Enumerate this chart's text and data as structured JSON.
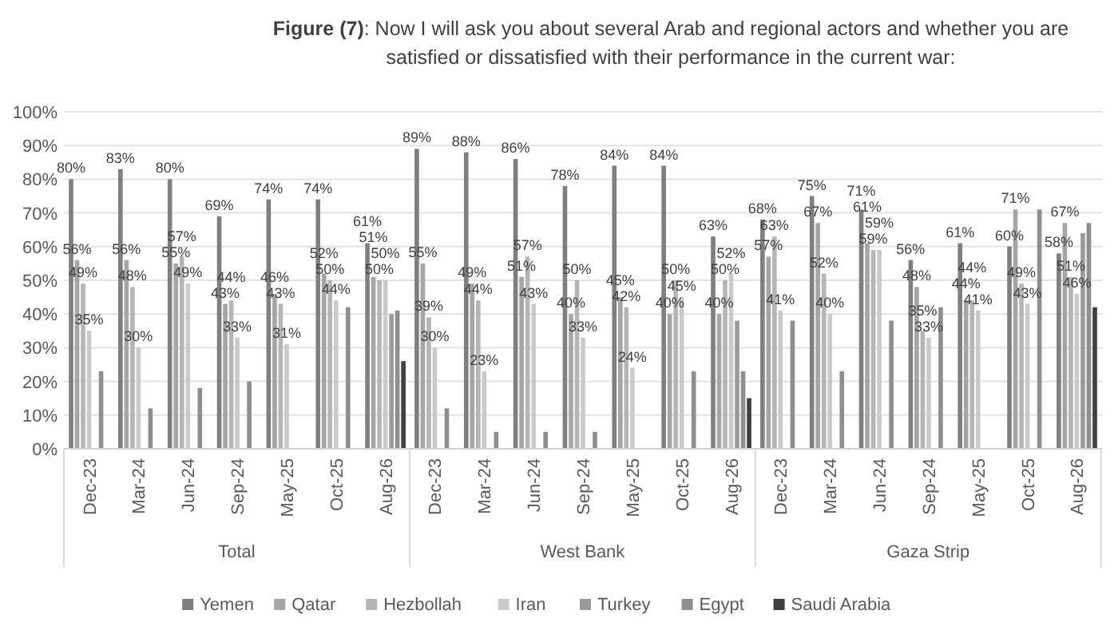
{
  "chart_data": {
    "type": "bar",
    "title": "Figure (7): Now I will ask you about several Arab and regional actors and whether you are satisfied or dissatisfied with their performance in the current war:",
    "categories": [
      "Dec-23",
      "Mar-24",
      "Jun-24",
      "Sep-24",
      "May-25",
      "Oct-25",
      "Aug-26",
      "Dec-23",
      "Mar-24",
      "Jun-24",
      "Sep-24",
      "May-25",
      "Oct-25",
      "Aug-26",
      "Dec-23",
      "Mar-24",
      "Jun-24",
      "Sep-24",
      "May-25",
      "Oct-25",
      "Aug-26"
    ],
    "annotations": [
      "Total",
      "West Bank",
      "Gaza Strip"
    ],
    "series": [
      {
        "name": "Yemen",
        "color": "#7f7f7f",
        "values": [
          80,
          83,
          80,
          69,
          74,
          74,
          61,
          89,
          88,
          86,
          78,
          84,
          84,
          63,
          68,
          75,
          71,
          56,
          61,
          60,
          58
        ],
        "value_labels": [
          "80%",
          "83%",
          "80%",
          "69%",
          "74%",
          "74%",
          "61%",
          "89%",
          "88%",
          "86%",
          "78%",
          "84%",
          "84%",
          "63%",
          "68%",
          "75%",
          "71%",
          "56%",
          "61%",
          "60%",
          "58%"
        ]
      },
      {
        "name": "Qatar",
        "color": "#a5a5a5",
        "values": [
          56,
          56,
          55,
          43,
          46,
          52,
          51,
          55,
          49,
          51,
          40,
          45,
          40,
          40,
          57,
          67,
          61,
          48,
          44,
          71,
          67
        ],
        "value_labels": [
          "56%",
          "56%",
          "55%",
          "43%",
          "46%",
          "52%",
          "51%",
          "55%",
          "49%",
          "51%",
          "40%",
          "45%",
          "40%",
          "40%",
          "57%",
          "67%",
          "61%",
          "48%",
          "44%",
          "71%",
          "67%"
        ]
      },
      {
        "name": "Hezbollah",
        "color": "#b5b5b5",
        "values": [
          49,
          48,
          57,
          44,
          43,
          50,
          50,
          39,
          44,
          57,
          50,
          42,
          50,
          50,
          63,
          52,
          59,
          35,
          44,
          49,
          51
        ],
        "value_labels": [
          "49%",
          "48%",
          "57%",
          "44%",
          "43%",
          "50%",
          "50%",
          "39%",
          "44%",
          "57%",
          "50%",
          "42%",
          "50%",
          "50%",
          "63%",
          "52%",
          "59%",
          "35%",
          "44%",
          "49%",
          "51%"
        ]
      },
      {
        "name": "Iran",
        "color": "#cacaca",
        "values": [
          35,
          30,
          49,
          33,
          31,
          44,
          50,
          30,
          23,
          43,
          33,
          24,
          45,
          52,
          41,
          40,
          59,
          33,
          41,
          43,
          46
        ],
        "value_labels": [
          "35%",
          "30%",
          "49%",
          "33%",
          "31%",
          "44%",
          "50%",
          "30%",
          "23%",
          "43%",
          "33%",
          "24%",
          "45%",
          "52%",
          "41%",
          "40%",
          "59%",
          "33%",
          "41%",
          "43%",
          "46%"
        ]
      },
      {
        "name": "Turkey",
        "color": "#9a9a9a",
        "values": [
          null,
          null,
          null,
          null,
          null,
          null,
          40,
          null,
          null,
          null,
          null,
          null,
          null,
          38,
          null,
          null,
          null,
          null,
          null,
          null,
          64
        ]
      },
      {
        "name": "Egypt",
        "color": "#8e8e8e",
        "values": [
          23,
          12,
          18,
          20,
          null,
          42,
          41,
          12,
          5,
          5,
          5,
          null,
          23,
          23,
          38,
          23,
          38,
          42,
          null,
          71,
          67
        ]
      },
      {
        "name": "Saudi Arabia",
        "color": "#3f3f3f",
        "values": [
          null,
          null,
          null,
          null,
          null,
          null,
          26,
          null,
          null,
          null,
          null,
          null,
          null,
          15,
          null,
          null,
          null,
          null,
          null,
          null,
          42
        ]
      }
    ],
    "ylim": [
      0,
      100
    ],
    "yticks": [
      {
        "value": 0,
        "label": "0%"
      },
      {
        "value": 10,
        "label": "10%"
      },
      {
        "value": 20,
        "label": "20%"
      },
      {
        "value": 30,
        "label": "30%"
      },
      {
        "value": 40,
        "label": "40%"
      },
      {
        "value": 50,
        "label": "50%"
      },
      {
        "value": 60,
        "label": "60%"
      },
      {
        "value": 70,
        "label": "70%"
      },
      {
        "value": 80,
        "label": "80%"
      },
      {
        "value": 90,
        "label": "90%"
      },
      {
        "value": 100,
        "label": "100%"
      }
    ],
    "grid": "y",
    "legend": "bottom"
  }
}
